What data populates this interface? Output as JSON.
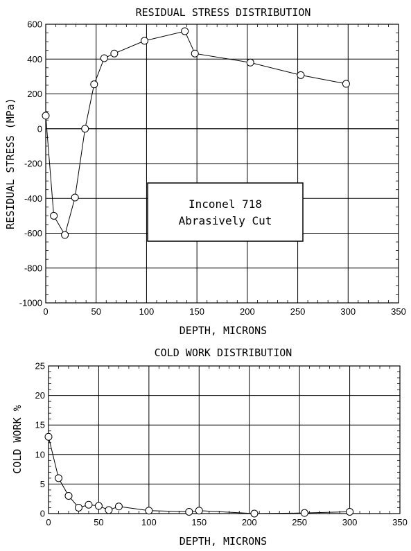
{
  "chart_data": [
    {
      "type": "line",
      "title": "RESIDUAL STRESS DISTRIBUTION",
      "xlabel": "DEPTH, MICRONS",
      "ylabel": "RESIDUAL STRESS (MPa)",
      "xlim": [
        0,
        350
      ],
      "ylim": [
        -1000,
        600
      ],
      "xticks": [
        0,
        50,
        100,
        150,
        200,
        250,
        300,
        350
      ],
      "yticks": [
        -1000,
        -800,
        -600,
        -400,
        -200,
        0,
        200,
        400,
        600
      ],
      "grid": true,
      "annotation": [
        "Inconel 718",
        "Abrasively Cut"
      ],
      "series": [
        {
          "x": [
            0,
            8,
            19,
            29,
            39,
            48,
            58,
            68,
            98,
            138,
            148,
            203,
            253,
            298
          ],
          "y": [
            75,
            -500,
            -610,
            -395,
            0,
            255,
            405,
            432,
            505,
            560,
            432,
            380,
            308,
            258
          ]
        }
      ]
    },
    {
      "type": "line",
      "title": "COLD WORK DISTRIBUTION",
      "xlabel": "DEPTH, MICRONS",
      "ylabel": "COLD WORK %",
      "xlim": [
        0,
        350
      ],
      "ylim": [
        0,
        25
      ],
      "xticks": [
        0,
        50,
        100,
        150,
        200,
        250,
        300,
        350
      ],
      "yticks": [
        0,
        5,
        10,
        15,
        20,
        25
      ],
      "grid": true,
      "series": [
        {
          "x": [
            0,
            10,
            20,
            30,
            40,
            50,
            60,
            70,
            100,
            140,
            150,
            205,
            255,
            300
          ],
          "y": [
            13,
            6,
            3,
            1,
            1.5,
            1.3,
            0.6,
            1.2,
            0.5,
            0.3,
            0.5,
            0,
            0.1,
            0.3
          ]
        }
      ]
    }
  ]
}
